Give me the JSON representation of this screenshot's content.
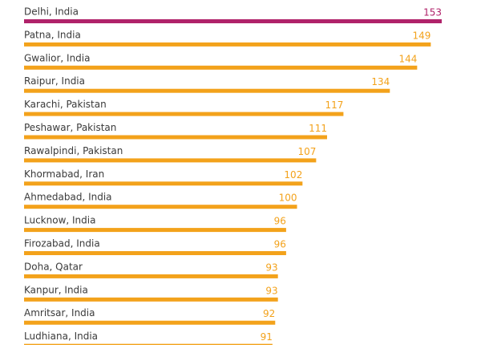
{
  "chart_data": {
    "type": "bar",
    "orientation": "horizontal",
    "categories": [
      "Delhi, India",
      "Patna, India",
      "Gwalior, India",
      "Raipur, India",
      "Karachi, Pakistan",
      "Peshawar, Pakistan",
      "Rawalpindi, Pakistan",
      "Khormabad, Iran",
      "Ahmedabad, India",
      "Lucknow, India",
      "Firozabad, India",
      "Doha, Qatar",
      "Kanpur, India",
      "Amritsar, India",
      "Ludhiana, India"
    ],
    "values": [
      153,
      149,
      144,
      134,
      117,
      111,
      107,
      102,
      100,
      96,
      96,
      93,
      93,
      92,
      91
    ],
    "colors": [
      "#b0226a",
      "#f3a21b",
      "#f3a21b",
      "#f3a21b",
      "#f3a21b",
      "#f3a21b",
      "#f3a21b",
      "#f3a21b",
      "#f3a21b",
      "#f3a21b",
      "#f3a21b",
      "#f3a21b",
      "#f3a21b",
      "#f3a21b",
      "#f3a21b"
    ]
  }
}
